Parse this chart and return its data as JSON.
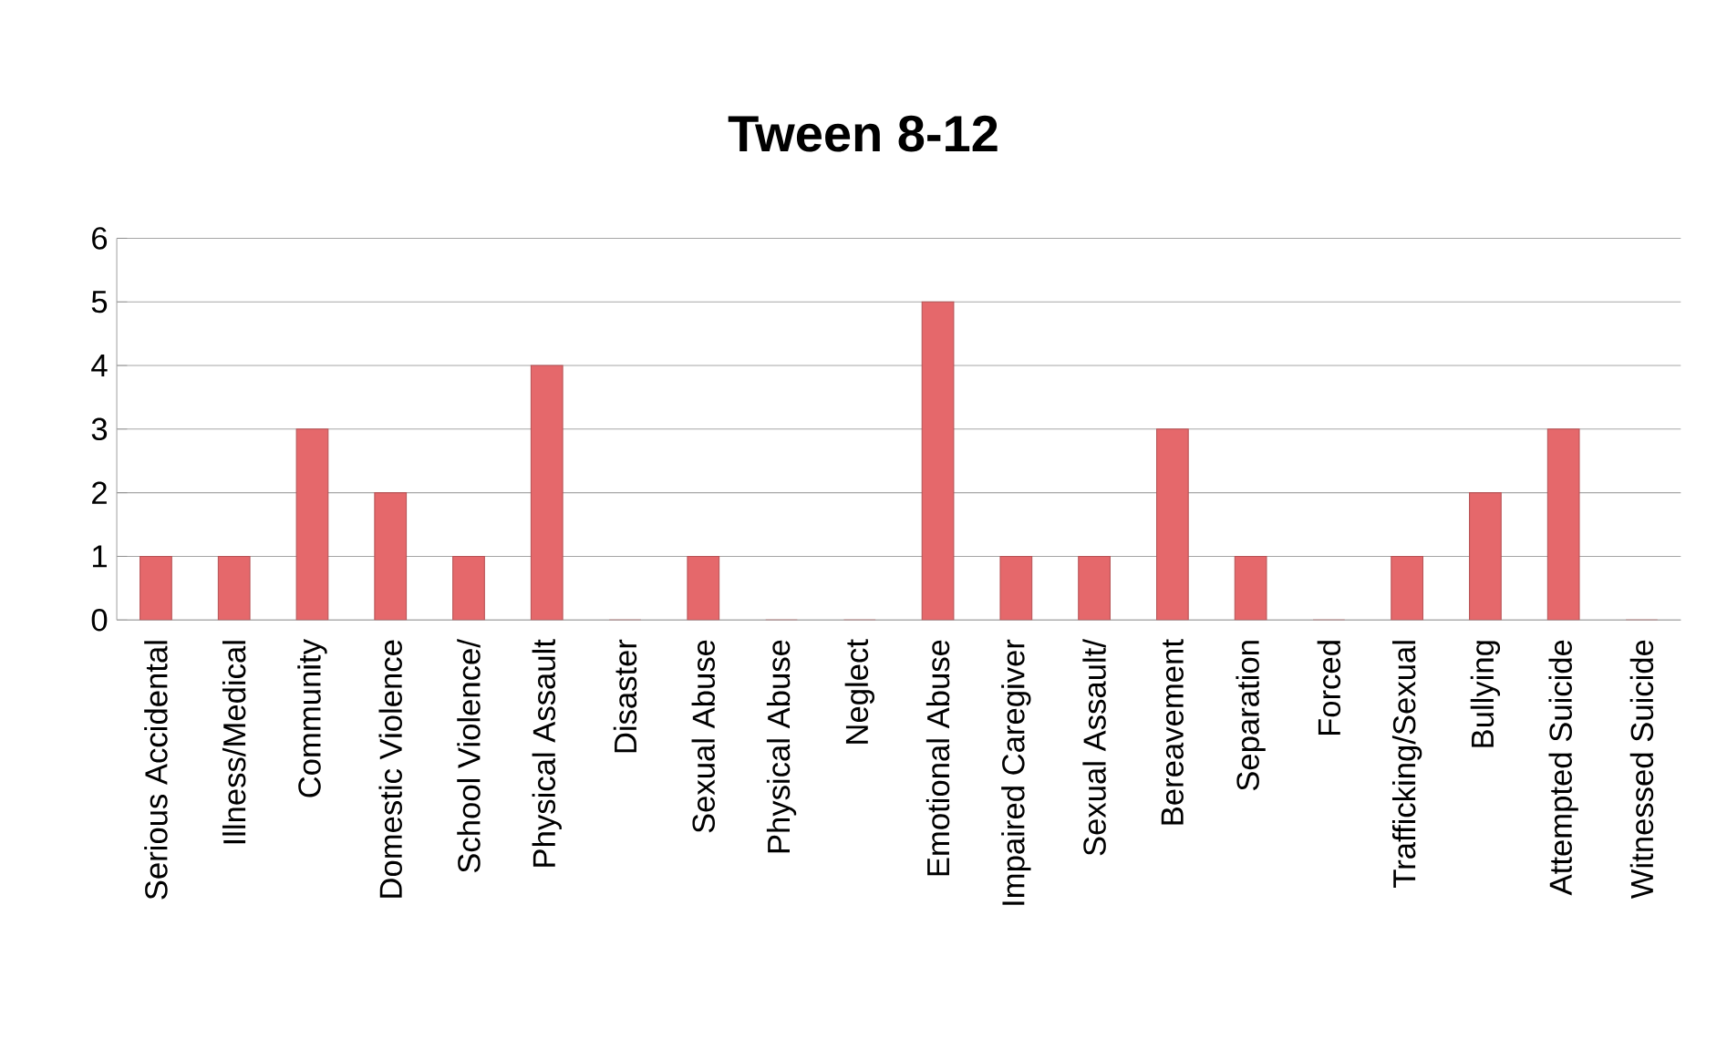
{
  "chart_data": {
    "type": "bar",
    "title": "Tween 8-12",
    "categories": [
      "Serious Accidental",
      "Illness/Medical",
      "Community",
      "Domestic Violence",
      "School Violence/",
      "Physical Assault",
      "Disaster",
      "Sexual Abuse",
      "Physical Abuse",
      "Neglect",
      "Emotional Abuse",
      "Impaired Caregiver",
      "Sexual Assault/",
      "Bereavement",
      "Separation",
      "Forced",
      "Trafficking/Sexual",
      "Bullying",
      "Attempted Suicide",
      "Witnessed Suicide"
    ],
    "values": [
      1,
      1,
      3,
      2,
      1,
      4,
      0,
      1,
      0,
      0,
      5,
      1,
      1,
      3,
      1,
      0,
      1,
      2,
      3,
      0
    ],
    "color": "#e5686b",
    "ylim": [
      0,
      6
    ],
    "yticks": [
      0,
      1,
      2,
      3,
      4,
      5,
      6
    ],
    "grid": "y"
  }
}
